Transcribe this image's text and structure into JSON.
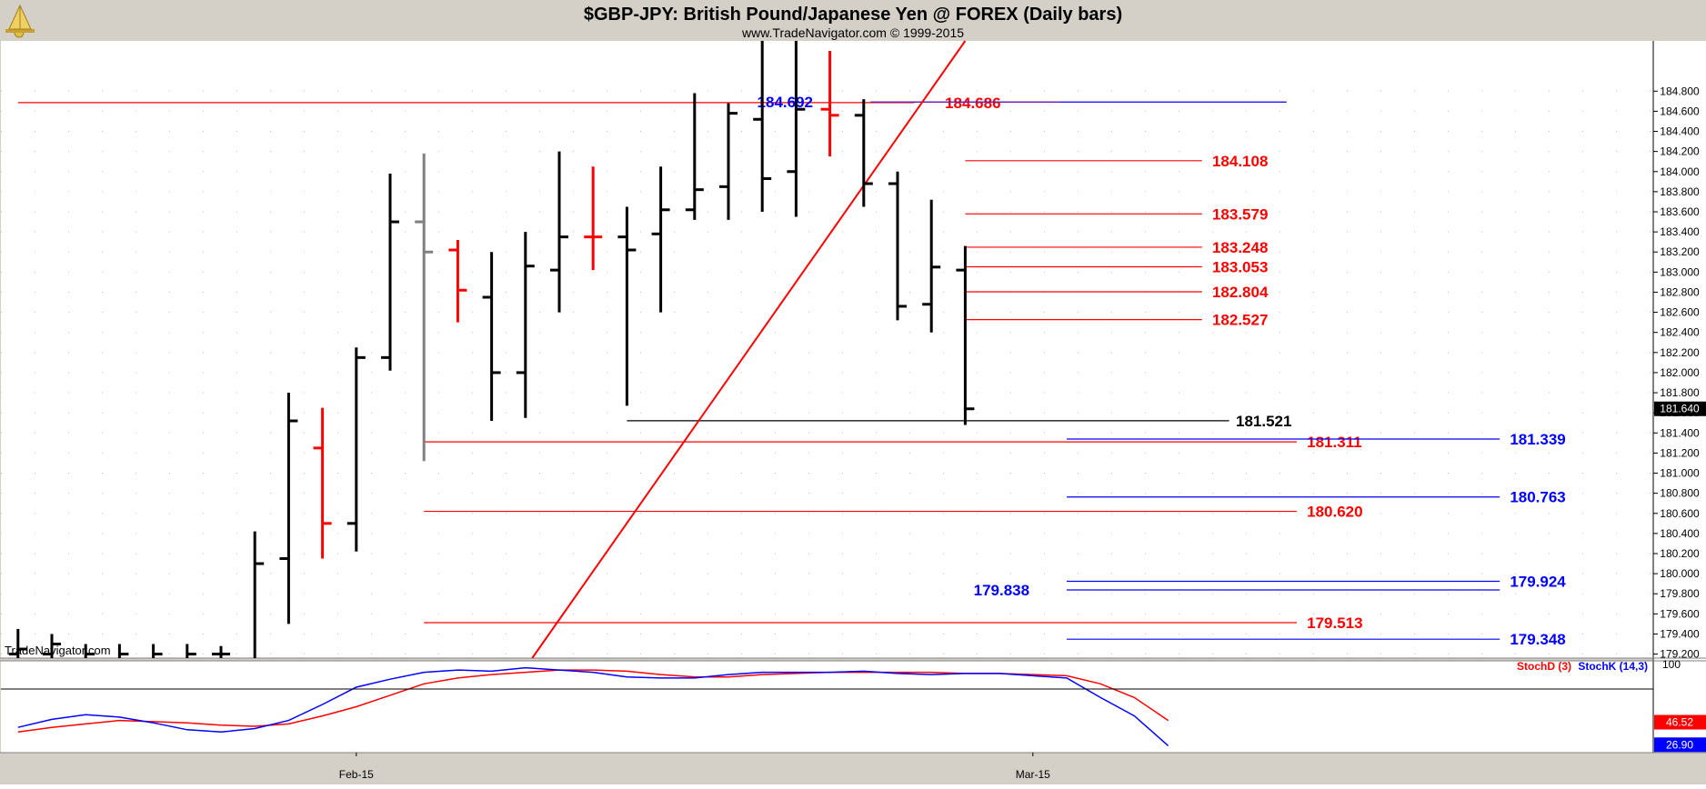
{
  "header": {
    "title": "$GBP-JPY:  British Pound/Japanese Yen @ FOREX  (Daily bars)",
    "subtitle": "www.TradeNavigator.com © 1999-2015",
    "watermark": "TradeNavigator.com"
  },
  "colors": {
    "up": "#000000",
    "down": "#ff0000",
    "neutral": "#808080",
    "blue": "#0000ff",
    "red": "#ff0000",
    "purple": "#7b1fa2",
    "bg": "#ffffff",
    "frame": "#d4d0c8"
  },
  "chart_data": [
    {
      "type": "ohlc",
      "title": "$GBP-JPY:  British Pound/Japanese Yen @ FOREX  (Daily bars)",
      "ylim": [
        179.16,
        185.3
      ],
      "y_ticks": [
        "184.800",
        "184.600",
        "184.400",
        "184.200",
        "184.000",
        "183.800",
        "183.600",
        "183.400",
        "183.200",
        "183.000",
        "182.800",
        "182.600",
        "182.400",
        "182.200",
        "182.000",
        "181.800",
        "181.600",
        "181.400",
        "181.200",
        "181.000",
        "180.800",
        "180.600",
        "180.400",
        "180.200",
        "180.000",
        "179.800",
        "179.600",
        "179.400",
        "179.200"
      ],
      "x_labels": [
        {
          "label": "Feb-15",
          "index": 4
        },
        {
          "label": "Mar-15",
          "index": 24
        }
      ],
      "last_price": "181.640",
      "bars": [
        {
          "o": 179.2,
          "h": 179.45,
          "l": 179.1,
          "c": 179.25,
          "dir": "up"
        },
        {
          "o": 179.2,
          "h": 179.4,
          "l": 179.1,
          "c": 179.3,
          "dir": "up"
        },
        {
          "o": 179.1,
          "h": 179.3,
          "l": 179.0,
          "c": 179.2,
          "dir": "up"
        },
        {
          "o": 179.1,
          "h": 179.3,
          "l": 179.0,
          "c": 179.2,
          "dir": "up"
        },
        {
          "o": 179.1,
          "h": 179.3,
          "l": 179.0,
          "c": 179.2,
          "dir": "up"
        },
        {
          "o": 179.1,
          "h": 179.3,
          "l": 179.0,
          "c": 179.2,
          "dir": "up"
        },
        {
          "o": 179.2,
          "h": 179.28,
          "l": 179.1,
          "c": 179.2,
          "dir": "up"
        },
        {
          "o": 179.0,
          "h": 180.42,
          "l": 179.0,
          "c": 180.1,
          "dir": "up"
        },
        {
          "o": 180.15,
          "h": 181.8,
          "l": 179.5,
          "c": 181.52,
          "dir": "up"
        },
        {
          "o": 181.25,
          "h": 181.65,
          "l": 180.15,
          "c": 180.5,
          "dir": "down"
        },
        {
          "o": 180.5,
          "h": 182.25,
          "l": 180.22,
          "c": 182.15,
          "dir": "up"
        },
        {
          "o": 182.15,
          "h": 183.98,
          "l": 182.02,
          "c": 183.5,
          "dir": "up"
        },
        {
          "o": 183.5,
          "h": 184.18,
          "l": 181.12,
          "c": 183.2,
          "dir": "neutral"
        },
        {
          "o": 183.22,
          "h": 183.32,
          "l": 182.5,
          "c": 182.82,
          "dir": "down"
        },
        {
          "o": 182.75,
          "h": 183.2,
          "l": 181.52,
          "c": 182.0,
          "dir": "up"
        },
        {
          "o": 182.0,
          "h": 183.4,
          "l": 181.55,
          "c": 183.06,
          "dir": "up"
        },
        {
          "o": 183.02,
          "h": 184.2,
          "l": 182.6,
          "c": 183.35,
          "dir": "up"
        },
        {
          "o": 183.35,
          "h": 184.05,
          "l": 183.02,
          "c": 183.35,
          "dir": "down"
        },
        {
          "o": 183.35,
          "h": 183.65,
          "l": 181.67,
          "c": 183.22,
          "dir": "up"
        },
        {
          "o": 183.38,
          "h": 184.05,
          "l": 182.6,
          "c": 183.62,
          "dir": "up"
        },
        {
          "o": 183.62,
          "h": 184.78,
          "l": 183.52,
          "c": 183.82,
          "dir": "up"
        },
        {
          "o": 183.85,
          "h": 184.68,
          "l": 183.52,
          "c": 184.58,
          "dir": "up"
        },
        {
          "o": 184.52,
          "h": 185.3,
          "l": 183.6,
          "c": 183.93,
          "dir": "up"
        },
        {
          "o": 184.0,
          "h": 185.3,
          "l": 183.55,
          "c": 184.62,
          "dir": "up"
        },
        {
          "o": 184.62,
          "h": 185.2,
          "l": 184.15,
          "c": 184.56,
          "dir": "down"
        },
        {
          "o": 184.56,
          "h": 184.72,
          "l": 183.65,
          "c": 183.88,
          "dir": "up"
        },
        {
          "o": 183.88,
          "h": 184.0,
          "l": 182.52,
          "c": 182.66,
          "dir": "up"
        },
        {
          "o": 182.68,
          "h": 183.72,
          "l": 182.4,
          "c": 183.05,
          "dir": "up"
        },
        {
          "o": 183.02,
          "h": 183.26,
          "l": 181.48,
          "c": 181.64,
          "dir": "up"
        }
      ],
      "trendline": {
        "from": {
          "index": 9.2,
          "price": 179.16
        },
        "to": {
          "index": 22,
          "price": 185.3
        },
        "color": "#ff0000"
      },
      "levels": [
        {
          "price": 184.686,
          "label": "184.686",
          "color": "#ff0000",
          "start": -6,
          "end": 20.5,
          "label_index": 21.4
        },
        {
          "price": 184.692,
          "label": "184.692",
          "color": "#0000ff",
          "start": 19.2,
          "end": 31.5,
          "label_index": 17.5,
          "label_side": "left"
        },
        {
          "price": 184.69,
          "label": "",
          "color": "#7b1fa2",
          "start": 19.2,
          "end": 24.8
        },
        {
          "price": 184.108,
          "label": "184.108",
          "color": "#ff0000",
          "start": 22,
          "end": 29,
          "label_index": 29.3
        },
        {
          "price": 183.579,
          "label": "183.579",
          "color": "#ff0000",
          "start": 22,
          "end": 29,
          "label_index": 29.3
        },
        {
          "price": 183.248,
          "label": "183.248",
          "color": "#ff0000",
          "start": 22,
          "end": 29,
          "label_index": 29.3
        },
        {
          "price": 183.053,
          "label": "183.053",
          "color": "#ff0000",
          "start": 22,
          "end": 29,
          "label_index": 29.3
        },
        {
          "price": 182.804,
          "label": "182.804",
          "color": "#ff0000",
          "start": 22,
          "end": 29,
          "label_index": 29.3
        },
        {
          "price": 182.527,
          "label": "182.527",
          "color": "#ff0000",
          "start": 22,
          "end": 29,
          "label_index": 29.3
        },
        {
          "price": 181.521,
          "label": "181.521",
          "color": "#000000",
          "start": 12,
          "end": 29.8,
          "label_index": 30
        },
        {
          "price": 181.311,
          "label": "181.311",
          "color": "#ff0000",
          "start": 6,
          "end": 31.8,
          "label_index": 32.1
        },
        {
          "price": 181.339,
          "label": "181.339",
          "color": "#0000ff",
          "start": 25,
          "end": 37.8,
          "label_index": 38.1
        },
        {
          "price": 180.763,
          "label": "180.763",
          "color": "#0000ff",
          "start": 25,
          "end": 37.8,
          "label_index": 38.1
        },
        {
          "price": 180.62,
          "label": "180.620",
          "color": "#ff0000",
          "start": 6,
          "end": 31.8,
          "label_index": 32.1
        },
        {
          "price": 179.924,
          "label": "179.924",
          "color": "#0000ff",
          "start": 25,
          "end": 37.8,
          "label_index": 38.1
        },
        {
          "price": 179.838,
          "label": "179.838",
          "color": "#0000ff",
          "start": 25,
          "end": 37.8,
          "label_index": 23.9,
          "label_side": "left"
        },
        {
          "price": 179.513,
          "label": "179.513",
          "color": "#ff0000",
          "start": 6,
          "end": 31.8,
          "label_index": 32.1
        },
        {
          "price": 179.348,
          "label": "179.348",
          "color": "#0000ff",
          "start": 25,
          "end": 37.8,
          "label_index": 38.1
        }
      ]
    },
    {
      "type": "line",
      "title": "",
      "ylim": [
        20,
        100
      ],
      "y_ticks": [
        "100"
      ],
      "series": [
        {
          "name": "StochD (3)",
          "color": "#ff0000",
          "x": [
            -6,
            -5,
            -4,
            -3,
            -2,
            -1,
            0,
            1,
            2,
            3,
            4,
            5,
            6,
            7,
            8,
            9,
            10,
            11,
            12,
            13,
            14,
            15,
            16,
            17,
            18,
            19,
            20,
            21,
            22,
            23,
            24,
            25,
            26,
            27,
            28
          ],
          "values": [
            38,
            42,
            45,
            48,
            47,
            46,
            44,
            43,
            45,
            52,
            60,
            70,
            80,
            85,
            88,
            90,
            92,
            92,
            91,
            88,
            86,
            86,
            88,
            89,
            90,
            90,
            90,
            90,
            89,
            89,
            88,
            87,
            80,
            68,
            48
          ]
        },
        {
          "name": "StochK (14,3)",
          "color": "#0000ff",
          "x": [
            -6,
            -5,
            -4,
            -3,
            -2,
            -1,
            0,
            1,
            2,
            3,
            4,
            5,
            6,
            7,
            8,
            9,
            10,
            11,
            12,
            13,
            14,
            15,
            16,
            17,
            18,
            19,
            20,
            21,
            22,
            23,
            24,
            25,
            26,
            27,
            28
          ],
          "values": [
            42,
            49,
            53,
            51,
            46,
            40,
            38,
            41,
            48,
            62,
            77,
            84,
            90,
            92,
            91,
            94,
            92,
            90,
            86,
            85,
            85,
            88,
            90,
            90,
            90,
            91,
            89,
            88,
            89,
            89,
            87,
            85,
            68,
            52,
            26
          ]
        }
      ],
      "last_values": [
        "46.52",
        "26.90"
      ]
    }
  ]
}
